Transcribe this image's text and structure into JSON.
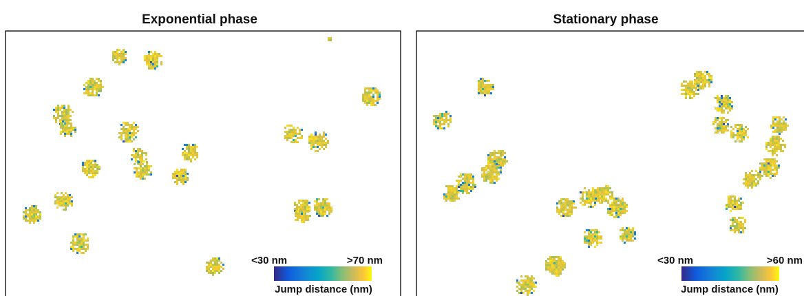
{
  "panels": [
    {
      "title": "Exponential phase",
      "colorbar": {
        "min_label": "<30 nm",
        "max_label": ">70 nm",
        "label": "Jump distance (nm)"
      }
    },
    {
      "title": "Stationary phase",
      "colorbar": {
        "min_label": "<30 nm",
        "max_label": ">60 nm",
        "label": "Jump distance (nm)"
      }
    }
  ]
}
